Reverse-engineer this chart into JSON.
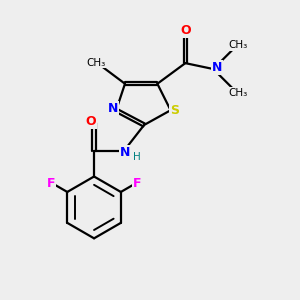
{
  "background_color": "#eeeeee",
  "atom_colors": {
    "O": "#ff0000",
    "N": "#0000ff",
    "S": "#cccc00",
    "F": "#ff00ff",
    "C": "#000000",
    "H": "#008080"
  },
  "figsize": [
    3.0,
    3.0
  ],
  "dpi": 100,
  "xlim": [
    0,
    10
  ],
  "ylim": [
    0,
    10
  ]
}
